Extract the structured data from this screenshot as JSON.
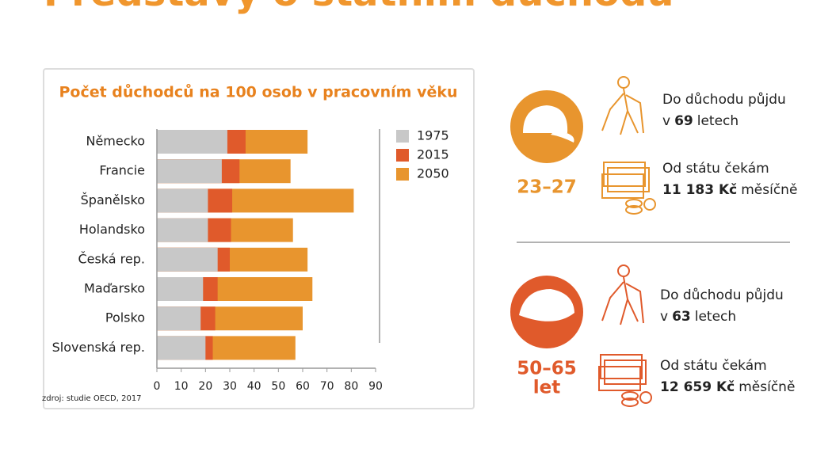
{
  "page_title": "Představy o státním důchodu",
  "chart_data": {
    "type": "bar",
    "orientation": "horizontal",
    "barmode": "overlay",
    "title": "Počet důchodců na 100 osob v pracovním věku",
    "categories": [
      "Německo",
      "Francie",
      "Španělsko",
      "Holandsko",
      "Česká rep.",
      "Maďarsko",
      "Polsko",
      "Slovenská rep."
    ],
    "series": [
      {
        "name": "1975",
        "color": "#c8c8c8",
        "values": [
          29,
          26.7,
          21,
          21,
          25,
          19,
          18,
          20
        ]
      },
      {
        "name": "2015",
        "color": "#e05a2b",
        "values": [
          36.5,
          34,
          31,
          30.5,
          30,
          25,
          24,
          23
        ]
      },
      {
        "name": "2050",
        "color": "#e8952e",
        "values": [
          62,
          55,
          81,
          56,
          62,
          64,
          60,
          57
        ]
      }
    ],
    "xlim": [
      0,
      90
    ],
    "xticks": [
      0,
      10,
      20,
      30,
      40,
      50,
      60,
      70,
      80,
      90
    ],
    "legend": "right",
    "source": "zdroj: studie OECD, 2017"
  },
  "groups": [
    {
      "age": [
        "23–27"
      ],
      "retire": [
        "Do důchodu půjdu",
        "v",
        "69",
        "letech"
      ],
      "pension": [
        "Od státu čekám",
        "11 183 Kč",
        "měsíčně"
      ]
    },
    {
      "age": [
        "50–65",
        "let"
      ],
      "retire": [
        "Do důchodu půjdu",
        "v",
        "63",
        "letech"
      ],
      "pension": [
        "Od státu čekám",
        "12 659 Kč",
        "měsíčně"
      ]
    }
  ]
}
